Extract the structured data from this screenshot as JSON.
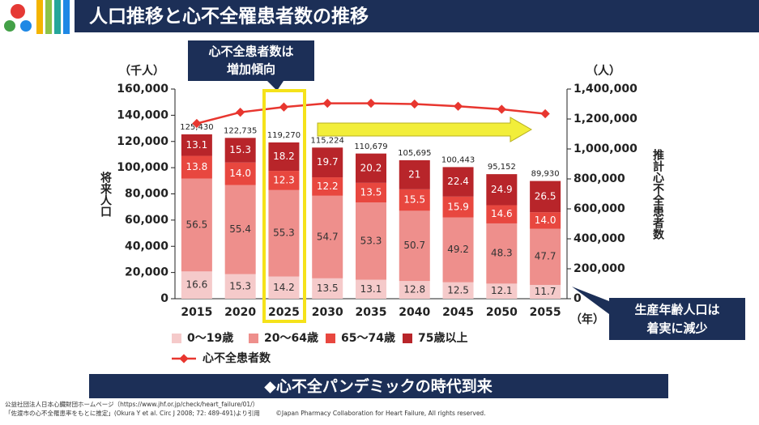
{
  "chart_data": {
    "type": "stacked_bar_line",
    "title": "人口推移と心不全罹患者数の推移",
    "y_unit": "（千人）",
    "y_label": "将来人口",
    "y2_unit": "（人）",
    "y2_label": "推計心不全患者数",
    "x_unit": "（年）",
    "categories": [
      "2015",
      "2020",
      "2025",
      "2030",
      "2035",
      "2040",
      "2045",
      "2050",
      "2055"
    ],
    "totals": {
      "values": [
        125430,
        122735,
        119270,
        115224,
        110679,
        105695,
        100443,
        95152,
        89930
      ],
      "value_labels": [
        "125,430",
        "122,735",
        "119,270",
        "115,224",
        "110,679",
        "105,695",
        "100,443",
        "95,152",
        "89,930"
      ]
    },
    "series": [
      {
        "name": "0～19歳",
        "color": "#f5caca",
        "text_color": "#333333",
        "values": [
          16.6,
          15.3,
          14.2,
          13.5,
          13.1,
          12.8,
          12.5,
          12.1,
          11.7
        ]
      },
      {
        "name": "20～64歳",
        "color": "#ee8f8c",
        "text_color": "#333333",
        "values": [
          56.5,
          55.4,
          55.3,
          54.7,
          53.3,
          50.7,
          49.2,
          48.3,
          47.7
        ]
      },
      {
        "name": "65～74歳",
        "color": "#e8473f",
        "text_color": "#ffffff",
        "values": [
          13.8,
          14.0,
          12.3,
          12.2,
          13.5,
          15.5,
          15.9,
          14.6,
          14.0
        ],
        "value_labels": [
          "13.8",
          "14.0",
          "12.3",
          "12.2",
          "13.5",
          "15.5",
          "15.9",
          "14.6",
          "14.0"
        ]
      },
      {
        "name": "75歳以上",
        "color": "#b8252a",
        "text_color": "#ffffff",
        "values": [
          13.1,
          15.3,
          18.2,
          19.7,
          20.2,
          21.0,
          22.4,
          24.9,
          26.5
        ]
      },
      {
        "name": "心不全患者数",
        "color": "#e8362f",
        "axis": "y2",
        "kind": "line",
        "values": [
          1170000,
          1245000,
          1280000,
          1305000,
          1305000,
          1300000,
          1285000,
          1265000,
          1235000
        ]
      }
    ],
    "ylim": [
      0,
      160000
    ],
    "yticks": [
      0,
      {
        "value": 20000,
        "label": "20,000"
      },
      {
        "value": 40000,
        "label": "40,000"
      },
      {
        "value": 60000,
        "label": "60,000"
      },
      {
        "value": 80000,
        "label": "80,000"
      },
      {
        "value": 100000,
        "label": "100,000"
      },
      {
        "value": 120000,
        "label": "120,000"
      },
      {
        "value": 140000,
        "label": "140,000"
      },
      {
        "value": 160000,
        "label": "160,000"
      }
    ],
    "y2lim": [
      0,
      1400000
    ],
    "y2ticks": [
      0,
      {
        "value": 200000,
        "label": "200,000"
      },
      {
        "value": 400000,
        "label": "400,000"
      },
      {
        "value": 600000,
        "label": "600,000"
      },
      {
        "value": 800000,
        "label": "800,000"
      },
      {
        "value": 1000000,
        "label": "1,000,000"
      },
      {
        "value": 1200000,
        "label": "1,200,000"
      },
      {
        "value": 1400000,
        "label": "1,400,000"
      }
    ],
    "callout": [
      "心不全患者数は",
      "増加傾向"
    ],
    "callout2": [
      "生産年齢人口は",
      "着実に減少"
    ],
    "banner": "◆心不全パンデミックの時代到来",
    "footnotes": [
      "公益社団法人日本心臓財団ホームページ（https://www.jhf.or.jp/check/heart_failure/01/）",
      "「佐渡市の心不全罹患率をもとに推定」(Okura Y et al. Circ J 2008; 72: 489-491)より引用"
    ],
    "copyright": "©Japan Pharmacy Collaboration for Heart Failure, All rights reserved."
  }
}
